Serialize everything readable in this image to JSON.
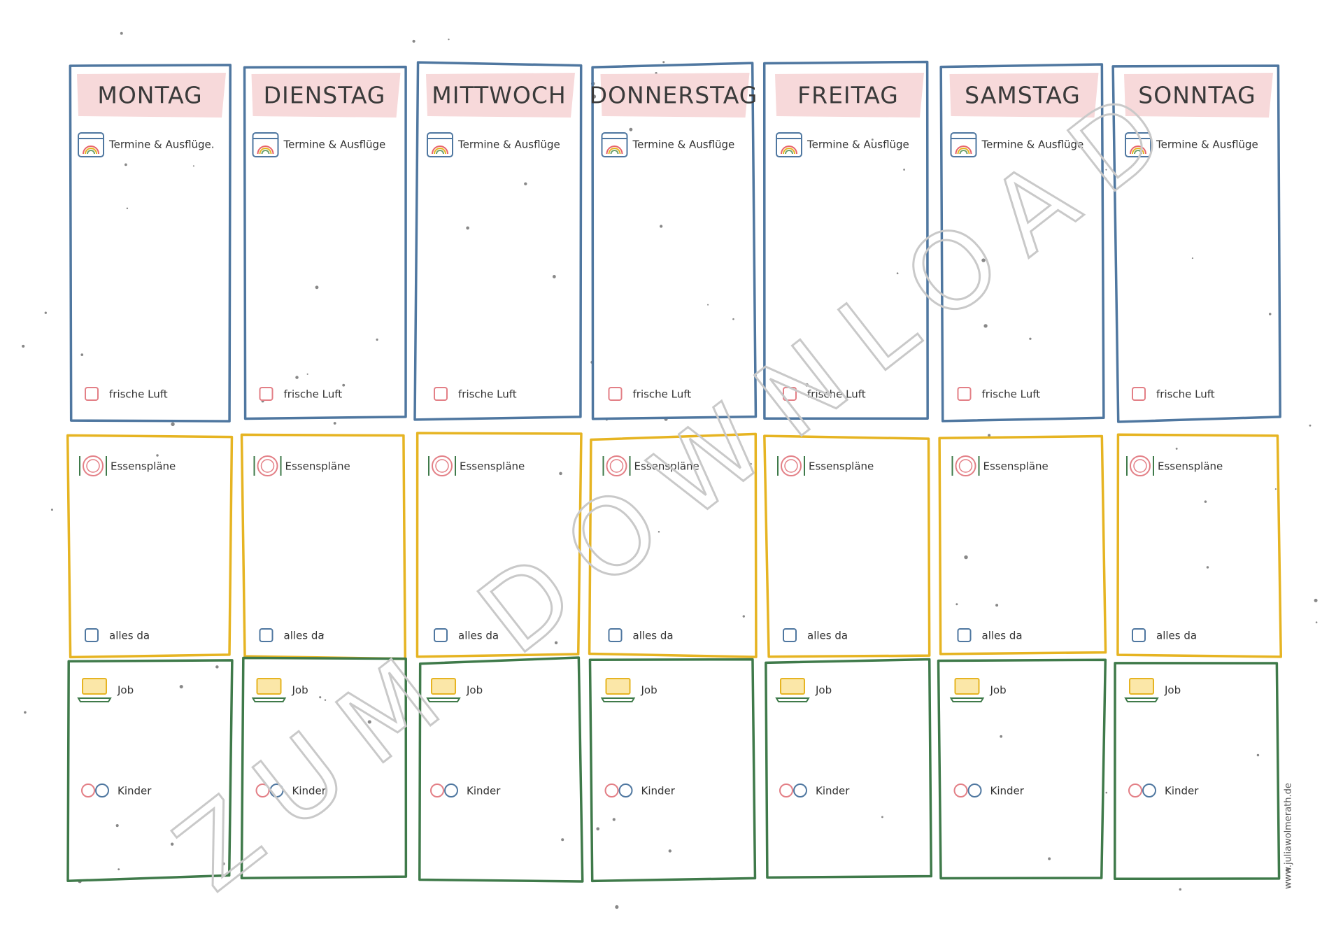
{
  "days": [
    {
      "name": "MONTAG",
      "appointments": "Termine & Ausflüge.",
      "fresh_air": "frische Luft",
      "meals": "Essenspläne",
      "all_there": "alles da",
      "job": "Job",
      "kids": "Kinder"
    },
    {
      "name": "DIENSTAG",
      "appointments": "Termine & Ausflüge",
      "fresh_air": "frische Luft",
      "meals": "Essenspläne",
      "all_there": "alles da",
      "job": "Job",
      "kids": "Kinder"
    },
    {
      "name": "MITTWOCH",
      "appointments": "Termine & Ausflüge",
      "fresh_air": "frische Luft",
      "meals": "Essenspläne",
      "all_there": "alles da",
      "job": "Job",
      "kids": "Kinder"
    },
    {
      "name": "DONNERSTAG",
      "appointments": "Termine & Ausflüge",
      "fresh_air": "frische Luft",
      "meals": "Essenspläne",
      "all_there": "alles da",
      "job": "Job",
      "kids": "Kinder"
    },
    {
      "name": "FREITAG",
      "appointments": "Termine & Ausflüge",
      "fresh_air": "frische Luft",
      "meals": "Essenspläne",
      "all_there": "alles da",
      "job": "Job",
      "kids": "Kinder"
    },
    {
      "name": "SAMSTAG",
      "appointments": "Termine & Ausflüge",
      "fresh_air": "frische Luft",
      "meals": "Essenspläne",
      "all_there": "alles da",
      "job": "Job",
      "kids": "Kinder"
    },
    {
      "name": "SONNTAG",
      "appointments": "Termine & Ausflüge",
      "fresh_air": "frische Luft",
      "meals": "Essenspläne",
      "all_there": "alles da",
      "job": "Job",
      "kids": "Kinder"
    }
  ],
  "watermark": "ZUM DOWNLOAD",
  "credit": "www.juliawolmerath.de"
}
